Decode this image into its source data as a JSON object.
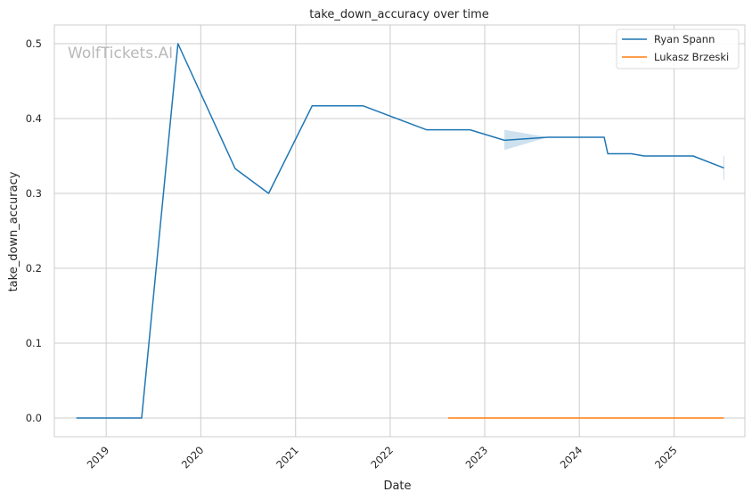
{
  "chart_data": {
    "type": "line",
    "title": "take_down_accuracy over time",
    "xlabel": "Date",
    "ylabel": "take_down_accuracy",
    "watermark": "WolfTickets.AI",
    "x_ticks": [
      "2019",
      "2020",
      "2021",
      "2022",
      "2023",
      "2024",
      "2025"
    ],
    "y_ticks": [
      "0.0",
      "0.1",
      "0.2",
      "0.3",
      "0.4",
      "0.5"
    ],
    "xlim": [
      "2018-06-15",
      "2025-10-01"
    ],
    "ylim": [
      -0.025,
      0.525
    ],
    "grid": true,
    "legend_position": "top-right",
    "series": [
      {
        "name": "Ryan Spann",
        "color": "#1f77b4",
        "points": [
          [
            "2018-09-08",
            0.0
          ],
          [
            "2019-05-18",
            0.0
          ],
          [
            "2019-10-05",
            0.5
          ],
          [
            "2020-05-13",
            0.333
          ],
          [
            "2020-09-19",
            0.3
          ],
          [
            "2021-03-06",
            0.417
          ],
          [
            "2021-09-18",
            0.417
          ],
          [
            "2022-05-21",
            0.385
          ],
          [
            "2022-11-05",
            0.385
          ],
          [
            "2023-03-18",
            0.371
          ],
          [
            "2023-09-02",
            0.375
          ],
          [
            "2024-04-06",
            0.375
          ],
          [
            "2024-04-20",
            0.353
          ],
          [
            "2024-07-20",
            0.353
          ],
          [
            "2024-09-07",
            0.35
          ],
          [
            "2025-03-15",
            0.35
          ],
          [
            "2025-07-12",
            0.334
          ]
        ],
        "bands": [
          {
            "dates": [
              "2023-03-18",
              "2023-09-02"
            ],
            "lower": [
              0.358,
              0.375
            ],
            "upper": [
              0.385,
              0.375
            ]
          },
          {
            "dates": [
              "2025-07-12"
            ],
            "lower": [
              0.318
            ],
            "upper": [
              0.35
            ]
          }
        ]
      },
      {
        "name": "Lukasz Brzeski",
        "color": "#ff7f0e",
        "points": [
          [
            "2022-08-13",
            0.0
          ],
          [
            "2025-07-12",
            0.0
          ]
        ]
      }
    ]
  }
}
